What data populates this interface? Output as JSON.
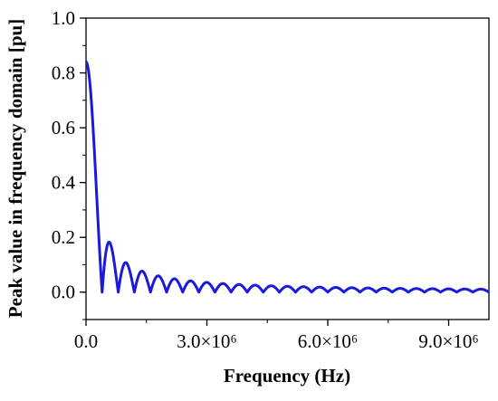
{
  "chart_data": {
    "type": "line",
    "title": "",
    "xlabel": "Frequency  (Hz)",
    "ylabel": "Peak  value in  frequency domain [pu]",
    "xlim": [
      0,
      10000000
    ],
    "ylim": [
      -0.1,
      1.0
    ],
    "x_ticks": [
      {
        "value": 0,
        "label": "0.0"
      },
      {
        "value": 3000000,
        "label": "3.0×10⁶"
      },
      {
        "value": 6000000,
        "label": "6.0×10⁶"
      },
      {
        "value": 9000000,
        "label": "9.0×10⁶"
      }
    ],
    "y_ticks": [
      {
        "value": 0.0,
        "label": "0.0"
      },
      {
        "value": 0.2,
        "label": "0.2"
      },
      {
        "value": 0.4,
        "label": "0.4"
      },
      {
        "value": 0.6,
        "label": "0.6"
      },
      {
        "value": 0.8,
        "label": "0.8"
      },
      {
        "value": 1.0,
        "label": "1.0"
      }
    ],
    "grid": false,
    "series": [
      {
        "color": "#1a1adb",
        "shape": "abs_sinc",
        "peak": 0.84,
        "first_null_hz": 400000,
        "x_start": 0,
        "x_end": 10000000
      }
    ]
  }
}
